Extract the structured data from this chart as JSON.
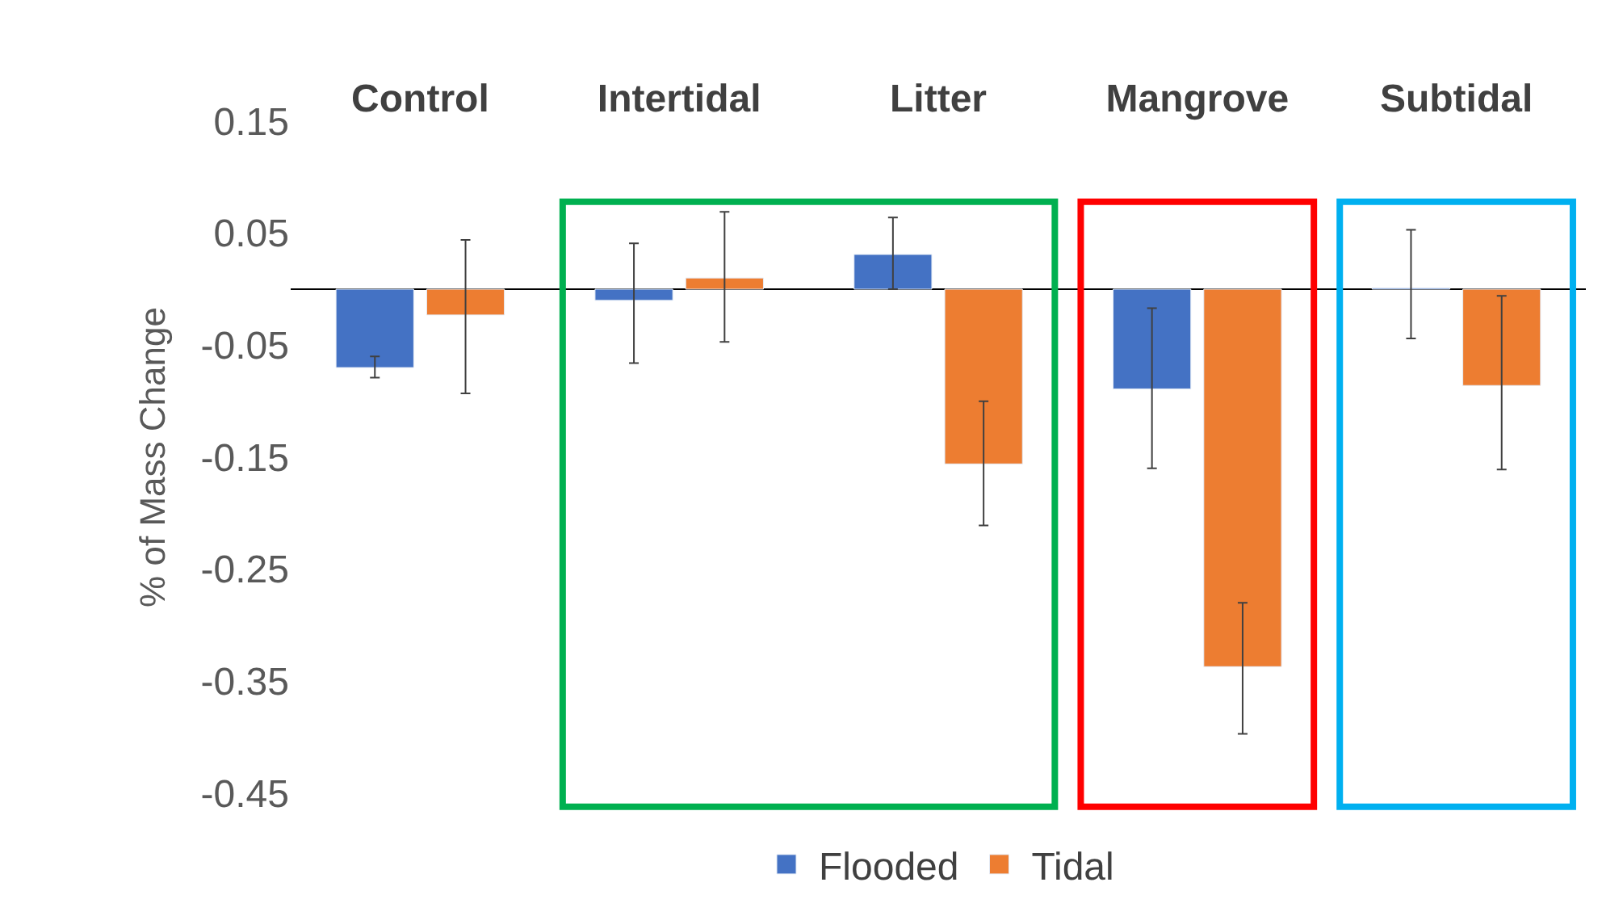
{
  "chart_data": {
    "type": "bar",
    "ylabel": "% of Mass Change",
    "categories": [
      "Control",
      "Intertidal",
      "Litter",
      "Mangrove",
      "Subtidal"
    ],
    "series": [
      {
        "name": "Flooded",
        "color": "#4472c4",
        "values": [
          -0.07,
          -0.01,
          0.031,
          -0.089,
          0.001
        ],
        "errors": [
          [
            -0.079,
            -0.06
          ],
          [
            -0.066,
            0.041
          ],
          [
            0.0,
            0.064
          ],
          [
            -0.16,
            -0.017
          ],
          [
            -0.044,
            0.053
          ]
        ]
      },
      {
        "name": "Tidal",
        "color": "#ed7d31",
        "values": [
          -0.023,
          0.01,
          -0.156,
          -0.337,
          -0.086
        ],
        "errors": [
          [
            -0.093,
            0.044
          ],
          [
            -0.047,
            0.069
          ],
          [
            -0.211,
            -0.1
          ],
          [
            -0.397,
            -0.28
          ],
          [
            -0.161,
            -0.006
          ]
        ]
      }
    ],
    "ylim": [
      -0.45,
      0.15
    ],
    "yticks": [
      0.15,
      0.05,
      -0.05,
      -0.15,
      -0.25,
      -0.35,
      -0.45
    ],
    "legend": "bottom"
  }
}
